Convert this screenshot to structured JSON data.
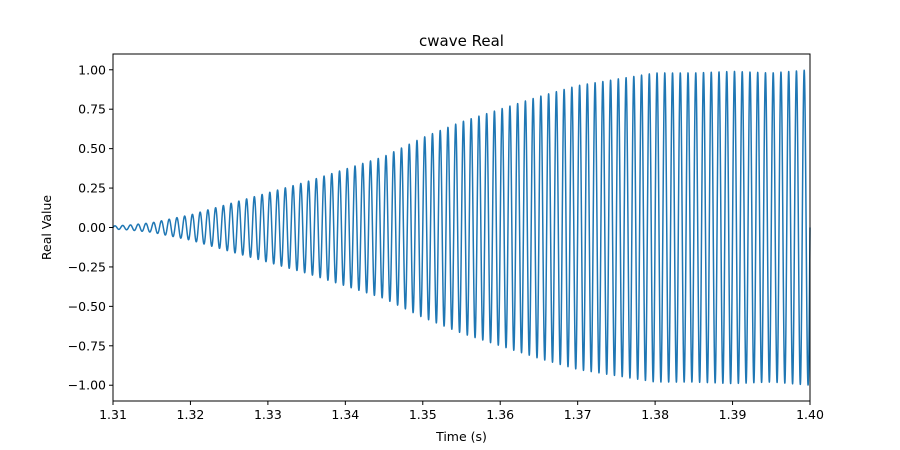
{
  "chart_data": {
    "type": "line",
    "title": "cwave Real",
    "xlabel": "Time (s)",
    "ylabel": "Real Value",
    "xlim": [
      1.31,
      1.4
    ],
    "ylim": [
      -1.1,
      1.1
    ],
    "x_ticks": [
      1.31,
      1.32,
      1.33,
      1.34,
      1.35,
      1.36,
      1.37,
      1.38,
      1.39,
      1.4
    ],
    "x_tick_labels": [
      "1.31",
      "1.32",
      "1.33",
      "1.34",
      "1.35",
      "1.36",
      "1.37",
      "1.38",
      "1.39",
      "1.40"
    ],
    "y_ticks": [
      -1.0,
      -0.75,
      -0.5,
      -0.25,
      0.0,
      0.25,
      0.5,
      0.75,
      1.0
    ],
    "y_tick_labels": [
      "−1.00",
      "−0.75",
      "−0.50",
      "−0.25",
      "0.00",
      "0.25",
      "0.50",
      "0.75",
      "1.00"
    ],
    "grid": false,
    "series": [
      {
        "color": "#1f77b4",
        "carrier_frequency_hz": 1000,
        "envelope_x": [
          1.31,
          1.312,
          1.315,
          1.32,
          1.325,
          1.33,
          1.335,
          1.34,
          1.345,
          1.35,
          1.355,
          1.36,
          1.365,
          1.37,
          1.375,
          1.38,
          1.385,
          1.39,
          1.395,
          1.4
        ],
        "envelope_y": [
          0.01,
          0.015,
          0.03,
          0.08,
          0.15,
          0.22,
          0.29,
          0.37,
          0.45,
          0.57,
          0.67,
          0.75,
          0.83,
          0.9,
          0.94,
          0.98,
          0.98,
          0.99,
          0.98,
          1.0
        ]
      }
    ]
  }
}
